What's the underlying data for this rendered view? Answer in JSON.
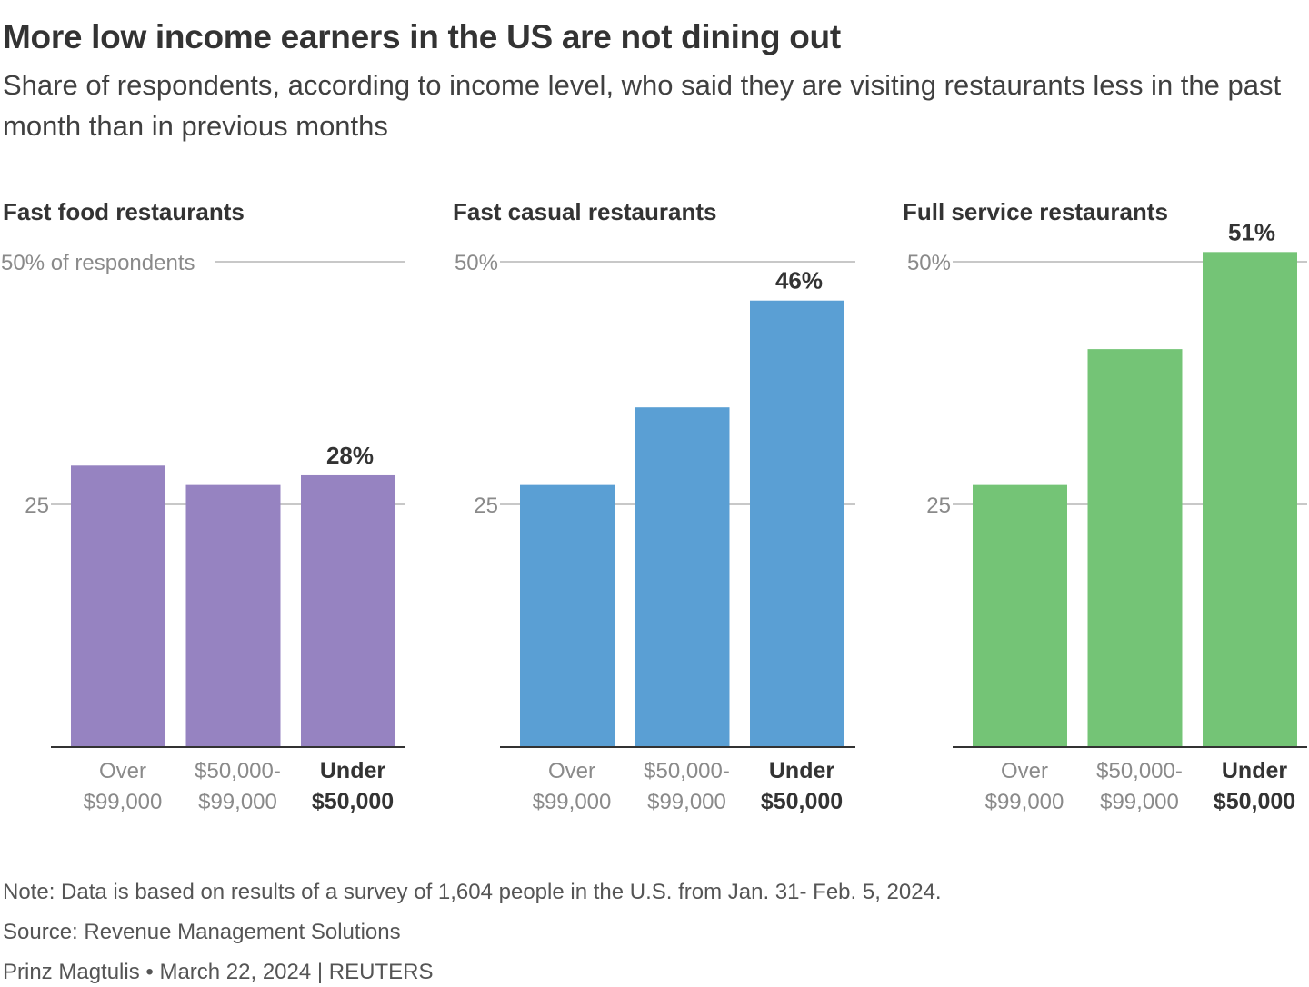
{
  "title": "More low income earners in the US are not dining out",
  "subtitle": "Share of respondents, according to income level, who said they are visiting restaurants less in the past month than in previous months",
  "chart_data": [
    {
      "type": "bar",
      "title": "Fast food restaurants",
      "categories": [
        [
          "Over",
          "$99,000"
        ],
        [
          "$50,000-",
          "$99,000"
        ],
        [
          "Under",
          "$50,000"
        ]
      ],
      "highlight_index": 2,
      "values": [
        29,
        27,
        28
      ],
      "value_labels": [
        "",
        "",
        "28%"
      ],
      "ylim": [
        0,
        50
      ],
      "yticks": [
        {
          "value": 25,
          "label": "25"
        },
        {
          "value": 50,
          "label": "50% of respondents"
        }
      ],
      "color": "#9683c1"
    },
    {
      "type": "bar",
      "title": "Fast casual restaurants",
      "categories": [
        [
          "Over",
          "$99,000"
        ],
        [
          "$50,000-",
          "$99,000"
        ],
        [
          "Under",
          "$50,000"
        ]
      ],
      "highlight_index": 2,
      "values": [
        27,
        35,
        46
      ],
      "value_labels": [
        "",
        "",
        "46%"
      ],
      "ylim": [
        0,
        50
      ],
      "yticks": [
        {
          "value": 25,
          "label": "25"
        },
        {
          "value": 50,
          "label": "50%"
        }
      ],
      "color": "#5a9fd4"
    },
    {
      "type": "bar",
      "title": "Full service restaurants",
      "categories": [
        [
          "Over",
          "$99,000"
        ],
        [
          "$50,000-",
          "$99,000"
        ],
        [
          "Under",
          "$50,000"
        ]
      ],
      "highlight_index": 2,
      "values": [
        27,
        41,
        51
      ],
      "value_labels": [
        "",
        "",
        "51%"
      ],
      "ylim": [
        0,
        50
      ],
      "yticks": [
        {
          "value": 25,
          "label": "25"
        },
        {
          "value": 50,
          "label": "50%"
        }
      ],
      "color": "#74c476"
    }
  ],
  "footer": {
    "note": "Note: Data is based on results of a survey of 1,604 people in the U.S. from Jan. 31- Feb. 5, 2024.",
    "source": "Source: Revenue Management Solutions",
    "byline": "Prinz Magtulis • March 22, 2024 | REUTERS"
  }
}
